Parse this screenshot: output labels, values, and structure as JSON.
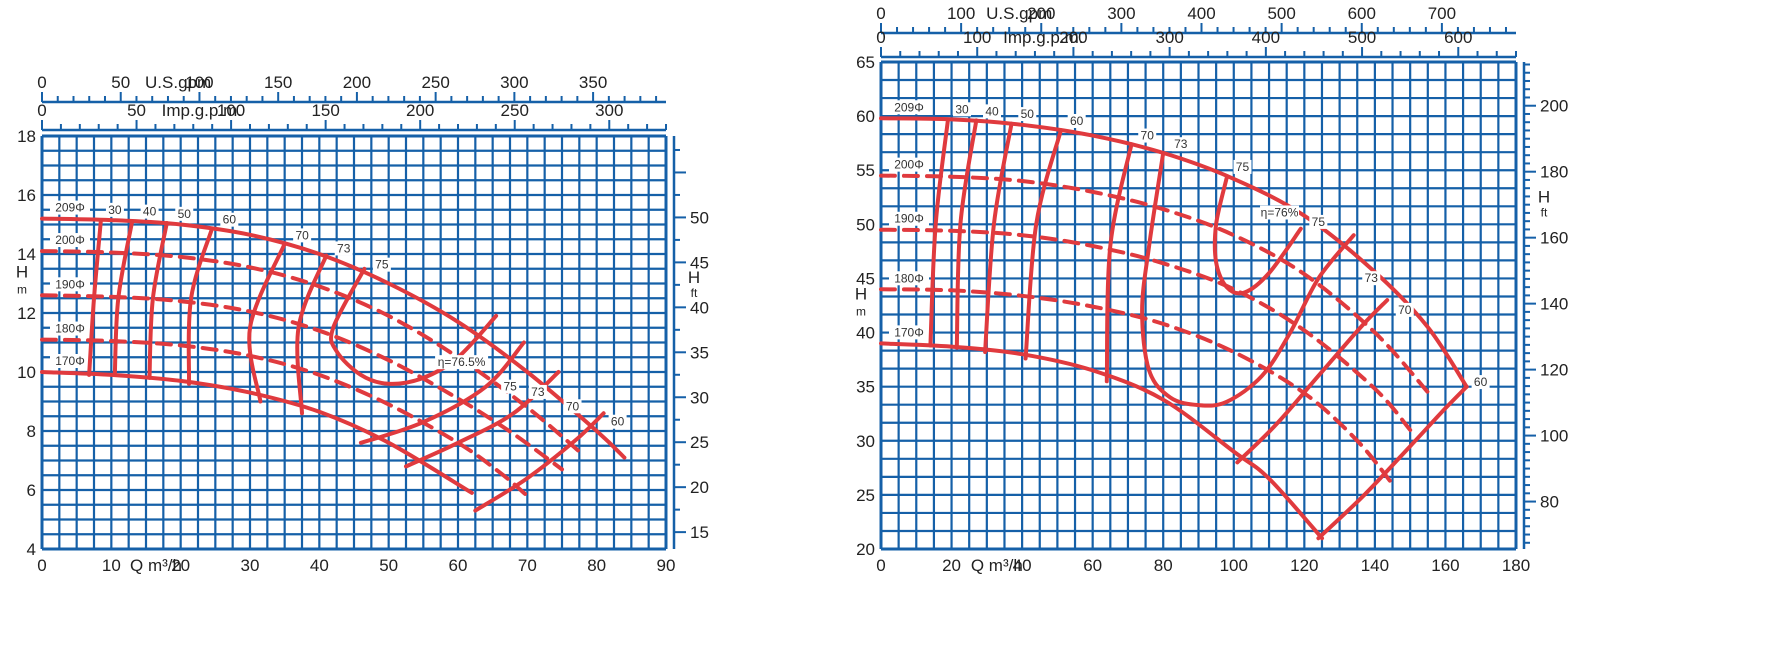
{
  "colors": {
    "grid": "#1560a8",
    "curve": "#e03a3e",
    "text": "#222222"
  },
  "chart_data": [
    {
      "type": "line",
      "xlabel": "Q m³/h",
      "ylabel_left": "H",
      "ylabel_left_unit": "m",
      "ylabel_right": "H",
      "ylabel_right_unit": "ft",
      "xlim": [
        0,
        90
      ],
      "ylim": [
        4,
        18
      ],
      "x_ticks": [
        0,
        10,
        20,
        30,
        40,
        50,
        60,
        70,
        80,
        90
      ],
      "y_ticks": [
        4,
        6,
        8,
        10,
        12,
        14,
        16,
        18
      ],
      "top_axis_1": {
        "label": "U.S.gpm",
        "ticks": [
          0,
          50,
          100,
          150,
          200,
          250,
          300,
          350
        ],
        "max": 396.3
      },
      "top_axis_2": {
        "label": "Imp.g.p.m.",
        "ticks": [
          0,
          50,
          100,
          150,
          200,
          250,
          300
        ],
        "max": 330.0
      },
      "right_ticks": [
        15,
        20,
        25,
        30,
        35,
        40,
        45,
        50
      ],
      "head_curves": [
        {
          "label": "209Φ",
          "points": [
            [
              0,
              15.2
            ],
            [
              10,
              15.15
            ],
            [
              20,
              15.0
            ],
            [
              30,
              14.65
            ],
            [
              40,
              14.0
            ],
            [
              50,
              13.0
            ],
            [
              60,
              11.7
            ],
            [
              70,
              10.0
            ],
            [
              80,
              8.0
            ],
            [
              84,
              7.1
            ]
          ]
        },
        {
          "label": "200Φ",
          "points": [
            [
              0,
              14.1
            ],
            [
              10,
              14.05
            ],
            [
              20,
              13.9
            ],
            [
              30,
              13.55
            ],
            [
              40,
              12.9
            ],
            [
              50,
              11.9
            ],
            [
              60,
              10.5
            ],
            [
              70,
              8.8
            ],
            [
              78,
              7.2
            ]
          ]
        },
        {
          "label": "190Φ",
          "points": [
            [
              0,
              12.6
            ],
            [
              10,
              12.55
            ],
            [
              20,
              12.4
            ],
            [
              30,
              12.05
            ],
            [
              40,
              11.4
            ],
            [
              50,
              10.4
            ],
            [
              60,
              9.1
            ],
            [
              68,
              7.9
            ],
            [
              75,
              6.7
            ]
          ]
        },
        {
          "label": "180Φ",
          "points": [
            [
              0,
              11.1
            ],
            [
              10,
              11.05
            ],
            [
              20,
              10.9
            ],
            [
              30,
              10.55
            ],
            [
              40,
              9.9
            ],
            [
              50,
              8.9
            ],
            [
              60,
              7.6
            ],
            [
              66,
              6.6
            ],
            [
              70,
              5.8
            ]
          ]
        },
        {
          "label": "170Φ",
          "points": [
            [
              0,
              10.0
            ],
            [
              10,
              9.9
            ],
            [
              20,
              9.7
            ],
            [
              30,
              9.3
            ],
            [
              40,
              8.65
            ],
            [
              50,
              7.6
            ],
            [
              62,
              5.9
            ]
          ]
        }
      ],
      "efficiency_labels": [
        "30",
        "40",
        "50",
        "60",
        "70",
        "73",
        "75",
        "η=76.5%",
        "75",
        "73",
        "70",
        "60"
      ],
      "efficiency_curves": [
        {
          "label": "30",
          "points": [
            [
              8.5,
              15.15
            ],
            [
              7.5,
              12.5
            ],
            [
              6.8,
              9.9
            ]
          ]
        },
        {
          "label": "40",
          "points": [
            [
              13,
              15.1
            ],
            [
              11,
              12.5
            ],
            [
              10.5,
              9.9
            ]
          ]
        },
        {
          "label": "50",
          "points": [
            [
              18,
              15.05
            ],
            [
              16,
              12.5
            ],
            [
              15.5,
              9.8
            ]
          ]
        },
        {
          "label": "60",
          "points": [
            [
              24.5,
              14.85
            ],
            [
              21.5,
              12.5
            ],
            [
              21.2,
              9.6
            ]
          ]
        },
        {
          "label": "70",
          "points": [
            [
              35,
              14.35
            ],
            [
              30,
              11.5
            ],
            [
              31.5,
              9.0
            ]
          ]
        },
        {
          "label": "73",
          "points": [
            [
              41,
              13.95
            ],
            [
              37,
              11.5
            ],
            [
              37.5,
              8.6
            ]
          ]
        },
        {
          "label": "75",
          "points": [
            [
              46.5,
              13.5
            ],
            [
              42,
              11.5
            ],
            [
              42.5,
              10.7
            ],
            [
              46,
              9.9
            ],
            [
              50,
              9.6
            ],
            [
              55,
              9.8
            ],
            [
              60,
              10.5
            ],
            [
              65.5,
              11.9
            ]
          ]
        },
        {
          "label": "73",
          "points": [
            [
              46,
              7.6
            ],
            [
              55,
              8.3
            ],
            [
              64,
              9.5
            ],
            [
              69.5,
              11.0
            ]
          ]
        },
        {
          "label": "70",
          "points": [
            [
              52.5,
              6.8
            ],
            [
              60,
              7.6
            ],
            [
              68,
              8.6
            ],
            [
              74.5,
              10.0
            ]
          ]
        },
        {
          "label": "60",
          "points": [
            [
              62.5,
              5.3
            ],
            [
              70,
              6.4
            ],
            [
              77,
              7.7
            ],
            [
              81,
              8.6
            ]
          ]
        }
      ]
    },
    {
      "type": "line",
      "xlabel": "Q m³/h",
      "ylabel_left": "H",
      "ylabel_left_unit": "m",
      "ylabel_right": "H",
      "ylabel_right_unit": "ft",
      "xlim": [
        0,
        180
      ],
      "ylim": [
        20,
        65
      ],
      "x_ticks": [
        0,
        20,
        40,
        60,
        80,
        100,
        120,
        140,
        160,
        180
      ],
      "y_ticks": [
        20,
        25,
        30,
        35,
        40,
        45,
        50,
        55,
        60,
        65
      ],
      "top_axis_1": {
        "label": "U.S.gpm",
        "ticks": [
          0,
          100,
          200,
          300,
          400,
          500,
          600,
          700
        ],
        "max": 792.5
      },
      "top_axis_2": {
        "label": "Imp.g.p.m.",
        "ticks": [
          0,
          100,
          200,
          300,
          400,
          500,
          600
        ],
        "max": 660.0
      },
      "right_ticks": [
        80,
        100,
        120,
        140,
        160,
        180,
        200
      ],
      "head_curves": [
        {
          "label": "209Φ",
          "points": [
            [
              0,
              59.8
            ],
            [
              20,
              59.7
            ],
            [
              40,
              59.2
            ],
            [
              60,
              58.2
            ],
            [
              80,
              56.6
            ],
            [
              100,
              54.2
            ],
            [
              120,
              50.8
            ],
            [
              140,
              45.6
            ],
            [
              155,
              40.5
            ],
            [
              166,
              35.0
            ]
          ]
        },
        {
          "label": "200Φ",
          "points": [
            [
              0,
              54.5
            ],
            [
              20,
              54.4
            ],
            [
              40,
              54.0
            ],
            [
              60,
              53.0
            ],
            [
              80,
              51.4
            ],
            [
              100,
              49.0
            ],
            [
              120,
              45.4
            ],
            [
              140,
              40.0
            ],
            [
              155,
              34.5
            ]
          ]
        },
        {
          "label": "190Φ",
          "points": [
            [
              0,
              49.5
            ],
            [
              20,
              49.4
            ],
            [
              40,
              49.0
            ],
            [
              60,
              48.0
            ],
            [
              80,
              46.4
            ],
            [
              100,
              44.0
            ],
            [
              120,
              40.2
            ],
            [
              140,
              34.8
            ],
            [
              150,
              31.0
            ]
          ]
        },
        {
          "label": "180Φ",
          "points": [
            [
              0,
              44.0
            ],
            [
              20,
              43.9
            ],
            [
              40,
              43.4
            ],
            [
              60,
              42.4
            ],
            [
              80,
              40.8
            ],
            [
              100,
              38.2
            ],
            [
              120,
              34.4
            ],
            [
              135,
              30.0
            ],
            [
              145,
              26.0
            ]
          ]
        },
        {
          "label": "170Φ",
          "points": [
            [
              0,
              39.0
            ],
            [
              20,
              38.7
            ],
            [
              40,
              38.0
            ],
            [
              60,
              36.5
            ],
            [
              80,
              33.8
            ],
            [
              100,
              29.0
            ],
            [
              110,
              26.5
            ],
            [
              125,
              21.0
            ]
          ]
        }
      ],
      "efficiency_labels": [
        "30",
        "40",
        "50",
        "60",
        "70",
        "73",
        "75",
        "η=76%",
        "75",
        "73",
        "70",
        "60"
      ],
      "efficiency_curves": [
        {
          "label": "30",
          "points": [
            [
              19,
              59.7
            ],
            [
              15.5,
              50
            ],
            [
              14,
              38.8
            ]
          ]
        },
        {
          "label": "40",
          "points": [
            [
              27,
              59.6
            ],
            [
              22.5,
              50
            ],
            [
              21.5,
              38.6
            ]
          ]
        },
        {
          "label": "50",
          "points": [
            [
              37,
              59.3
            ],
            [
              32,
              50
            ],
            [
              29.5,
              38.2
            ]
          ]
        },
        {
          "label": "60",
          "points": [
            [
              51,
              58.7
            ],
            [
              44,
              50
            ],
            [
              41,
              37.6
            ]
          ]
        },
        {
          "label": "70",
          "points": [
            [
              71,
              57.4
            ],
            [
              65,
              48
            ],
            [
              64,
              35.5
            ]
          ]
        },
        {
          "label": "73",
          "points": [
            [
              80,
              56.6
            ],
            [
              76,
              48
            ],
            [
              74,
              42
            ],
            [
              76,
              36.5
            ],
            [
              82,
              34
            ],
            [
              90,
              33.3
            ],
            [
              98,
              33.6
            ],
            [
              108,
              36
            ],
            [
              116,
              40
            ],
            [
              124,
              45
            ],
            [
              134,
              49
            ]
          ]
        },
        {
          "label": "75",
          "points": [
            [
              98,
              54.3
            ],
            [
              95,
              50
            ],
            [
              95,
              46.5
            ],
            [
              98,
              44.2
            ],
            [
              103,
              43.7
            ],
            [
              110,
              45.5
            ],
            [
              119,
              49.6
            ]
          ]
        },
        {
          "label": "60",
          "points": [
            [
              101,
              28.0
            ],
            [
              112,
              31.5
            ],
            [
              124,
              36
            ],
            [
              136,
              40.5
            ],
            [
              143.5,
              43.0
            ]
          ]
        },
        {
          "label": "60b",
          "points": [
            [
              124,
              21.0
            ],
            [
              137,
              25
            ],
            [
              150,
              29.5
            ],
            [
              160,
              33.0
            ],
            [
              166,
              35.0
            ]
          ]
        }
      ]
    }
  ]
}
